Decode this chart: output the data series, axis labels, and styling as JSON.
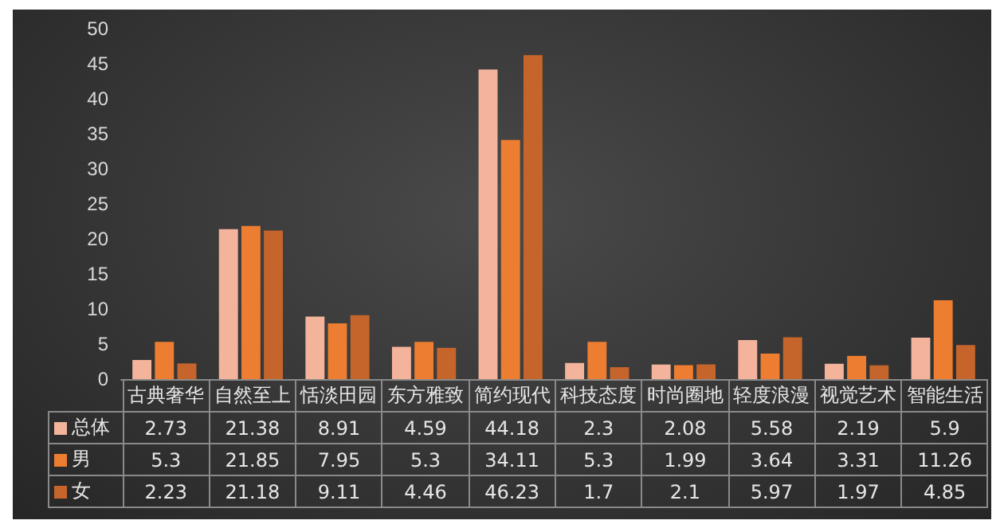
{
  "chart_data": {
    "type": "bar",
    "categories": [
      "古典奢华",
      "自然至上",
      "恬淡田园",
      "东方雅致",
      "简约现代",
      "科技态度",
      "时尚圈地",
      "轻度浪漫",
      "视觉艺术",
      "智能生活"
    ],
    "series": [
      {
        "name": "总体",
        "color": "#f4b49c",
        "values": [
          2.73,
          21.38,
          8.91,
          4.59,
          44.18,
          2.3,
          2.08,
          5.58,
          2.19,
          5.9
        ]
      },
      {
        "name": "男",
        "color": "#ed7d31",
        "values": [
          5.3,
          21.85,
          7.95,
          5.3,
          34.11,
          5.3,
          1.99,
          3.64,
          3.31,
          11.26
        ]
      },
      {
        "name": "女",
        "color": "#c5652c",
        "values": [
          2.23,
          21.18,
          9.11,
          4.46,
          46.23,
          1.7,
          2.1,
          5.97,
          1.97,
          4.85
        ]
      }
    ],
    "ylim": [
      0,
      50
    ],
    "yticks": [
      0,
      5,
      10,
      15,
      20,
      25,
      30,
      35,
      40,
      45,
      50
    ],
    "grid": false,
    "legend": "bottom",
    "data_labels": true
  }
}
